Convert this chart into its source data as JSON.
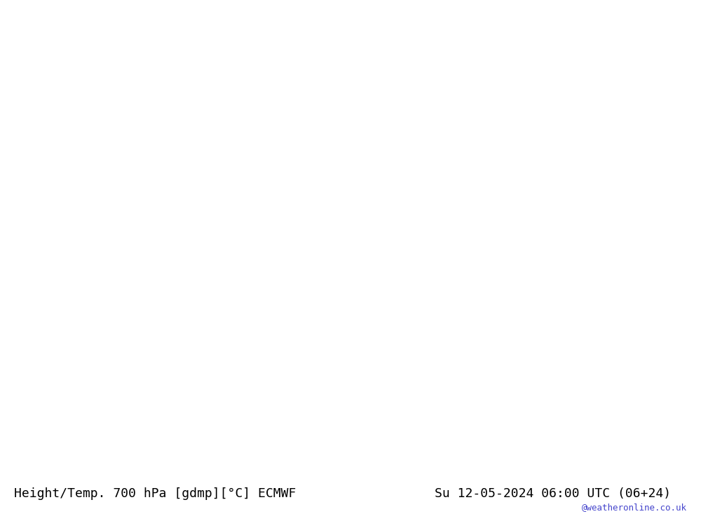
{
  "title_left": "Height/Temp. 700 hPa [gdmp][°C] ECMWF",
  "title_right": "Su 12-05-2024 06:00 UTC (06+24)",
  "watermark": "@weatheronline.co.uk",
  "background_land_green": "#c8f0a0",
  "background_sea_gray": "#d4d4d4",
  "background_land_white": "#f0f0f0",
  "bottom_bar_color": "#f0f0f0",
  "bottom_text_color": "#000000",
  "watermark_color": "#4444cc",
  "font_size_title": 13,
  "font_size_watermark": 9,
  "map_extent": [
    -25,
    35,
    33,
    72
  ],
  "geopotential_color": "#000000",
  "geopotential_dashed_color": "#000000",
  "temperature_pos_color": "#ff6600",
  "temperature_neg_color": "#ff0000",
  "temperature_zero_color": "#cc00cc",
  "wind_color": "#000000",
  "contour_lw_geo": 1.5,
  "contour_lw_temp": 1.2
}
